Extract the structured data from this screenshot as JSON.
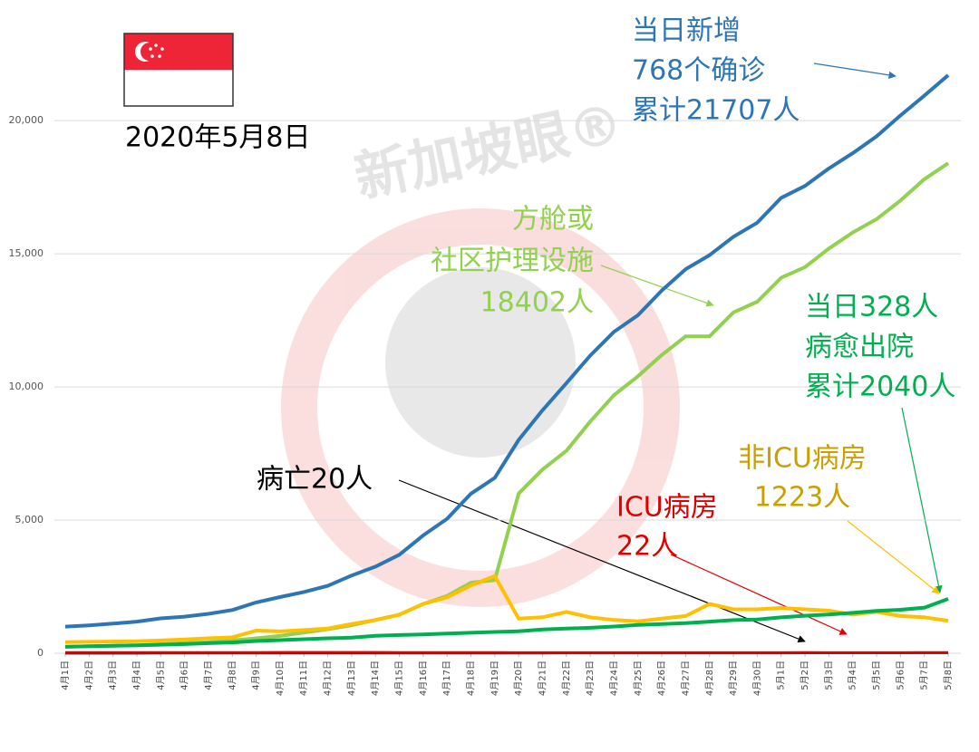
{
  "chart_data": {
    "type": "line",
    "date": "2020年5月8日",
    "watermark": "新加坡眼®",
    "categories": [
      "4月1日",
      "4月2日",
      "4月3日",
      "4月4日",
      "4月5日",
      "4月6日",
      "4月7日",
      "4月8日",
      "4月9日",
      "4月10日",
      "4月11日",
      "4月12日",
      "4月13日",
      "4月14日",
      "4月15日",
      "4月16日",
      "4月17日",
      "4月18日",
      "4月19日",
      "4月20日",
      "4月21日",
      "4月22日",
      "4月23日",
      "4月24日",
      "4月25日",
      "4月26日",
      "4月27日",
      "4月28日",
      "4月29日",
      "4月30日",
      "5月1日",
      "5月2日",
      "5月3日",
      "5月4日",
      "5月5日",
      "5月6日",
      "5月7日",
      "5月8日"
    ],
    "series": [
      {
        "color": "#2e75b6",
        "values": [
          1000,
          1049,
          1114,
          1189,
          1309,
          1375,
          1481,
          1623,
          1910,
          2108,
          2299,
          2532,
          2918,
          3252,
          3699,
          4427,
          5050,
          5992,
          6588,
          8014,
          9125,
          10141,
          11178,
          12075,
          12693,
          13624,
          14423,
          14951,
          15641,
          16169,
          17101,
          17548,
          18205,
          18778,
          19410,
          20198,
          20939,
          21707
        ]
      },
      {
        "color": "#92d050",
        "values": [
          250,
          260,
          280,
          300,
          340,
          380,
          420,
          480,
          560,
          650,
          780,
          900,
          1050,
          1250,
          1450,
          1850,
          2150,
          2650,
          2750,
          6000,
          6900,
          7600,
          8700,
          9700,
          10400,
          11200,
          11900,
          11900,
          12800,
          13200,
          14100,
          14500,
          15200,
          15800,
          16300,
          17000,
          17800,
          18402
        ]
      },
      {
        "color": "#ffc000",
        "values": [
          420,
          430,
          440,
          450,
          480,
          520,
          560,
          600,
          850,
          820,
          870,
          930,
          1100,
          1250,
          1450,
          1850,
          2100,
          2550,
          2900,
          1300,
          1350,
          1550,
          1350,
          1250,
          1200,
          1300,
          1400,
          1850,
          1650,
          1650,
          1700,
          1650,
          1600,
          1450,
          1550,
          1400,
          1350,
          1223
        ]
      },
      {
        "color": "#00b050",
        "values": [
          240,
          266,
          282,
          297,
          320,
          344,
          377,
          406,
          460,
          492,
          528,
          560,
          586,
          652,
          683,
          708,
          740,
          768,
          801,
          828,
          896,
          924,
          956,
          1002,
          1060,
          1095,
          1128,
          1188,
          1244,
          1268,
          1347,
          1408,
          1457,
          1519,
          1588,
          1634,
          1712,
          2040
        ]
      },
      {
        "color": "#222222",
        "values": [
          3,
          3,
          5,
          5,
          6,
          6,
          6,
          6,
          6,
          7,
          7,
          8,
          8,
          9,
          10,
          10,
          11,
          11,
          11,
          11,
          11,
          12,
          12,
          12,
          12,
          14,
          14,
          14,
          14,
          14,
          15,
          16,
          17,
          18,
          18,
          18,
          20,
          20
        ]
      },
      {
        "color": "#e00000",
        "values": [
          24,
          25,
          26,
          28,
          25,
          24,
          23,
          23,
          26,
          29,
          31,
          32,
          31,
          29,
          28,
          27,
          26,
          24,
          23,
          22,
          22,
          22,
          21,
          21,
          22,
          22,
          22,
          21,
          21,
          22,
          22,
          23,
          22,
          21,
          22,
          22,
          22,
          22
        ]
      }
    ],
    "annotations": [
      {
        "color": "#2e75b6",
        "lines": [
          "当日新增",
          "768个确诊",
          "累计21707人"
        ]
      },
      {
        "color": "#92d050",
        "lines": [
          "方舱或",
          "社区护理设施",
          "18402人"
        ]
      },
      {
        "color": "#00b050",
        "lines": [
          "当日328人",
          "病愈出院",
          "累计2040人"
        ]
      },
      {
        "color": "#c9a000",
        "lines": [
          "非ICU病房",
          "1223人"
        ]
      },
      {
        "color": "#e00000",
        "lines": [
          "ICU病房",
          "22人"
        ]
      },
      {
        "color": "#000000",
        "lines": [
          "病亡20人"
        ]
      }
    ],
    "ylim": [
      0,
      23000
    ],
    "yticks": [
      0,
      {
        "value": 5000,
        "label": "5,000"
      },
      {
        "value": 10000,
        "label": "10,000"
      },
      {
        "value": 15000,
        "label": "15,000"
      },
      {
        "value": 20000,
        "label": "20,000"
      }
    ],
    "grid": true
  }
}
